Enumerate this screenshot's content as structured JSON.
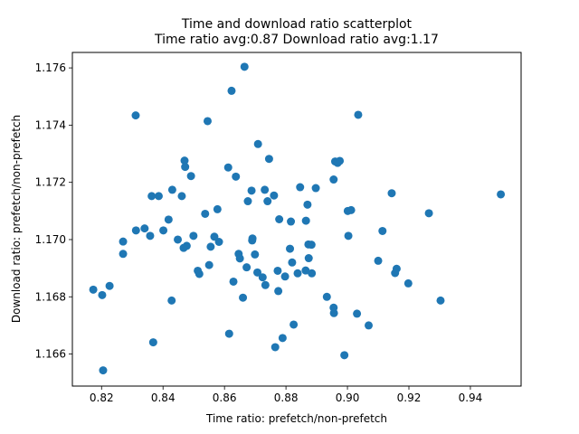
{
  "chart_data": {
    "type": "scatter",
    "title": "Time and download ratio scatterplot",
    "subtitle": "Time ratio avg:0.87 Download ratio avg:1.17",
    "xlabel": "Time ratio: prefetch/non-prefetch",
    "ylabel": "Download ratio: prefetch/non-prefetch",
    "xlim": [
      0.8105,
      0.9565
    ],
    "ylim": [
      1.16488,
      1.17654
    ],
    "xticks": [
      0.82,
      0.84,
      0.86,
      0.88,
      0.9,
      0.92,
      0.94
    ],
    "xtick_labels": [
      "0.82",
      "0.84",
      "0.86",
      "0.88",
      "0.90",
      "0.92",
      "0.94"
    ],
    "yticks": [
      1.166,
      1.168,
      1.17,
      1.172,
      1.174,
      1.176
    ],
    "ytick_labels": [
      "1.166",
      "1.168",
      "1.170",
      "1.172",
      "1.174",
      "1.176"
    ],
    "grid": false,
    "marker_color": "#1f77b4",
    "x": [
      0.8173,
      0.8202,
      0.8205,
      0.8226,
      0.827,
      0.827,
      0.8311,
      0.8312,
      0.834,
      0.8358,
      0.8363,
      0.8368,
      0.8386,
      0.8401,
      0.8418,
      0.8428,
      0.843,
      0.8448,
      0.8461,
      0.8467,
      0.847,
      0.8472,
      0.8477,
      0.8491,
      0.8499,
      0.8513,
      0.8518,
      0.8537,
      0.8545,
      0.855,
      0.8555,
      0.8567,
      0.8577,
      0.8582,
      0.8612,
      0.8615,
      0.8623,
      0.8629,
      0.8637,
      0.8646,
      0.865,
      0.866,
      0.8665,
      0.8672,
      0.8676,
      0.8688,
      0.869,
      0.8691,
      0.8699,
      0.8707,
      0.8709,
      0.8724,
      0.8731,
      0.8733,
      0.874,
      0.8745,
      0.8761,
      0.8765,
      0.8773,
      0.8775,
      0.8778,
      0.8789,
      0.8797,
      0.8813,
      0.8816,
      0.882,
      0.8825,
      0.8838,
      0.8846,
      0.8864,
      0.8865,
      0.887,
      0.8873,
      0.8874,
      0.8883,
      0.8884,
      0.8897,
      0.8933,
      0.8955,
      0.8955,
      0.8956,
      0.896,
      0.8968,
      0.8975,
      0.899,
      0.9001,
      0.9003,
      0.9012,
      0.9031,
      0.9035,
      0.9069,
      0.91,
      0.9114,
      0.9144,
      0.9155,
      0.916,
      0.9198,
      0.9265,
      0.9303,
      0.9499
    ],
    "y": [
      1.16825,
      1.16806,
      1.16543,
      1.16838,
      1.1695,
      1.16993,
      1.17434,
      1.17032,
      1.17039,
      1.17013,
      1.17152,
      1.16641,
      1.17152,
      1.17032,
      1.1707,
      1.16787,
      1.17174,
      1.17,
      1.17152,
      1.16971,
      1.17276,
      1.17254,
      1.16978,
      1.17222,
      1.17013,
      1.16891,
      1.1688,
      1.1709,
      1.17414,
      1.16911,
      1.16975,
      1.1701,
      1.17106,
      1.16992,
      1.17252,
      1.16671,
      1.1752,
      1.16853,
      1.1722,
      1.1695,
      1.16934,
      1.16797,
      1.17604,
      1.16903,
      1.17134,
      1.17171,
      1.16997,
      1.17004,
      1.16948,
      1.16885,
      1.17334,
      1.16868,
      1.17174,
      1.16841,
      1.17134,
      1.17282,
      1.17154,
      1.16624,
      1.16891,
      1.1682,
      1.17071,
      1.16656,
      1.16871,
      1.16968,
      1.17063,
      1.1692,
      1.16703,
      1.16882,
      1.17183,
      1.16892,
      1.17066,
      1.17122,
      1.16983,
      1.16935,
      1.16982,
      1.16882,
      1.1718,
      1.168,
      1.1721,
      1.16762,
      1.16743,
      1.17273,
      1.17268,
      1.17275,
      1.16596,
      1.171,
      1.17013,
      1.17103,
      1.16741,
      1.17436,
      1.167,
      1.16926,
      1.1703,
      1.17162,
      1.16883,
      1.16898,
      1.16847,
      1.17092,
      1.16787,
      1.17158
    ]
  }
}
